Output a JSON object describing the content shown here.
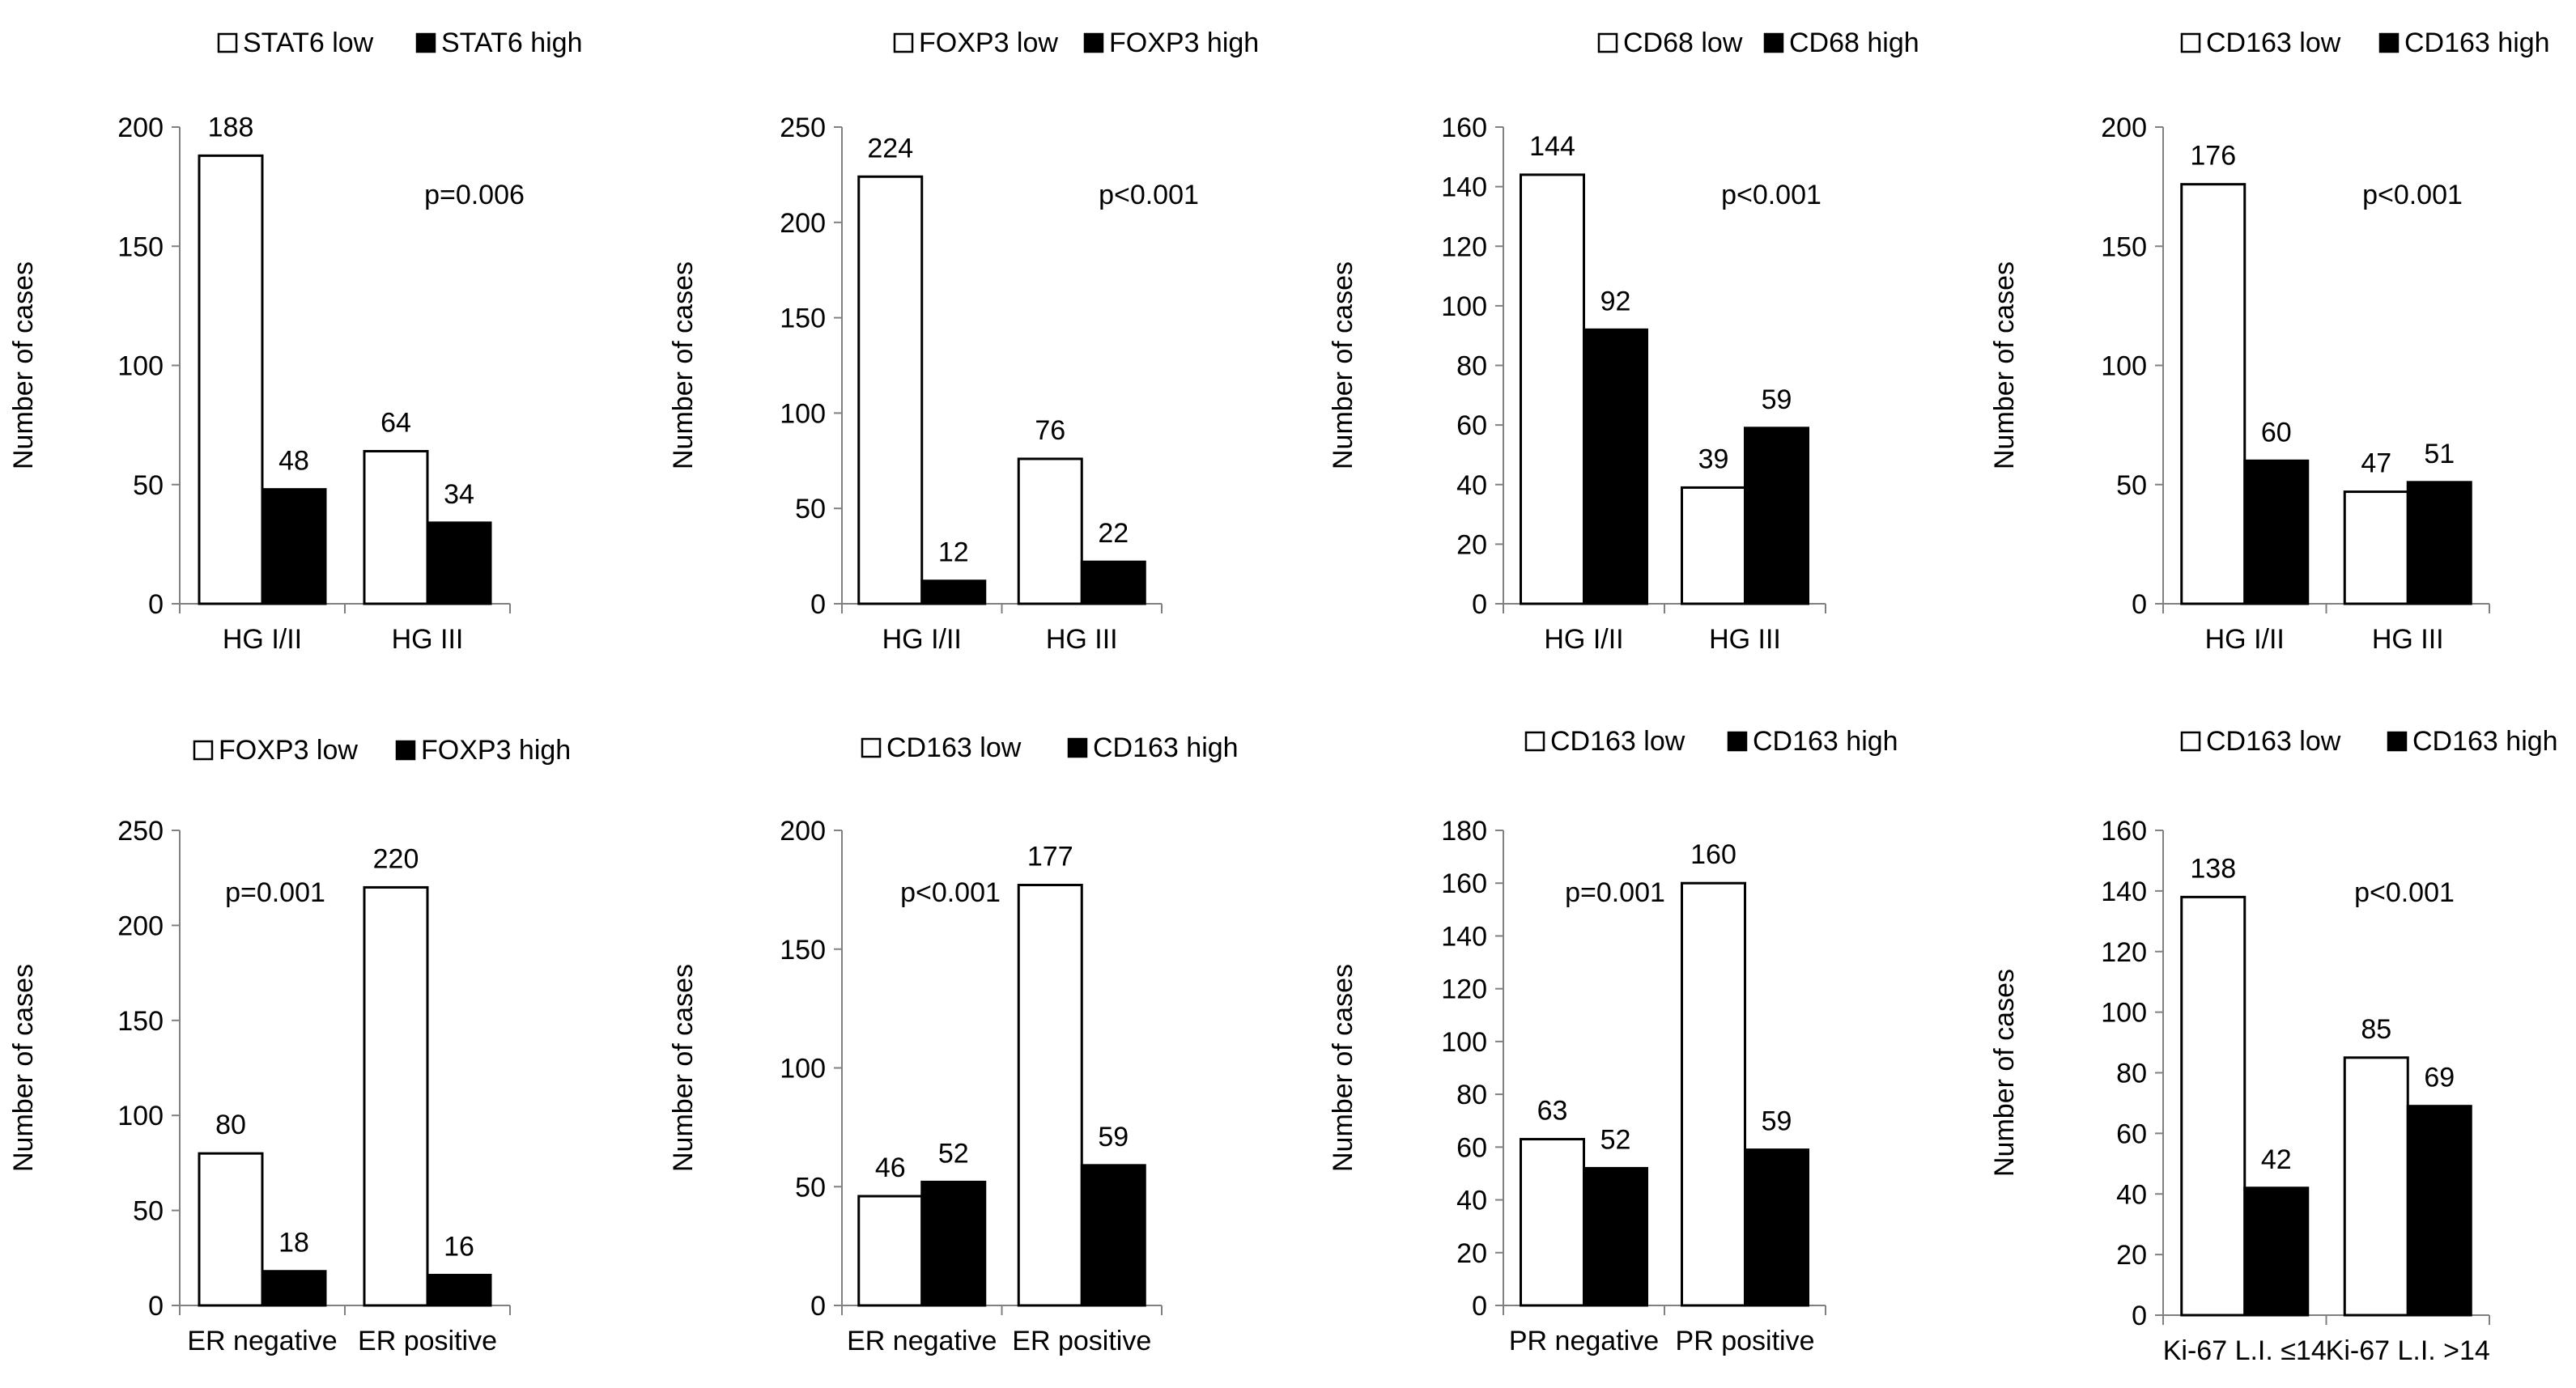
{
  "chart_data": [
    {
      "type": "bar",
      "title": "",
      "ylabel": "Number of cases",
      "xlabel": "",
      "ylim": [
        0,
        200
      ],
      "yticks": [
        0,
        50,
        100,
        150,
        200
      ],
      "categories": [
        "HG I/II",
        "HG III"
      ],
      "series": [
        {
          "name": "STAT6 low",
          "color": "#ffffff",
          "values": [
            188,
            64
          ]
        },
        {
          "name": "STAT6 high",
          "color": "#000000",
          "values": [
            48,
            34
          ]
        }
      ],
      "annotation": "p=0.006",
      "grid": false,
      "legend": "top"
    },
    {
      "type": "bar",
      "title": "",
      "ylabel": "Number of cases",
      "xlabel": "",
      "ylim": [
        0,
        250
      ],
      "yticks": [
        0,
        50,
        100,
        150,
        200,
        250
      ],
      "categories": [
        "HG I/II",
        "HG III"
      ],
      "series": [
        {
          "name": "FOXP3 low",
          "color": "#ffffff",
          "values": [
            224,
            76
          ]
        },
        {
          "name": "FOXP3 high",
          "color": "#000000",
          "values": [
            12,
            22
          ]
        }
      ],
      "annotation": "p<0.001",
      "grid": false,
      "legend": "top"
    },
    {
      "type": "bar",
      "title": "",
      "ylabel": "Number of cases",
      "xlabel": "",
      "ylim": [
        0,
        160
      ],
      "yticks": [
        0,
        20,
        40,
        60,
        80,
        100,
        120,
        140,
        160
      ],
      "categories": [
        "HG I/II",
        "HG III"
      ],
      "series": [
        {
          "name": "CD68 low",
          "color": "#ffffff",
          "values": [
            144,
            39
          ]
        },
        {
          "name": "CD68 high",
          "color": "#000000",
          "values": [
            92,
            59
          ]
        }
      ],
      "annotation": "p<0.001",
      "grid": false,
      "legend": "top"
    },
    {
      "type": "bar",
      "title": "",
      "ylabel": "Number of cases",
      "xlabel": "",
      "ylim": [
        0,
        200
      ],
      "yticks": [
        0,
        50,
        100,
        150,
        200
      ],
      "categories": [
        "HG I/II",
        "HG III"
      ],
      "series": [
        {
          "name": "CD163 low",
          "color": "#ffffff",
          "values": [
            176,
            47
          ]
        },
        {
          "name": "CD163 high",
          "color": "#000000",
          "values": [
            60,
            51
          ]
        }
      ],
      "annotation": "p<0.001",
      "grid": false,
      "legend": "top"
    },
    {
      "type": "bar",
      "title": "",
      "ylabel": "Number of cases",
      "xlabel": "",
      "ylim": [
        0,
        250
      ],
      "yticks": [
        0,
        50,
        100,
        150,
        200,
        250
      ],
      "categories": [
        "ER negative",
        "ER positive"
      ],
      "series": [
        {
          "name": "FOXP3 low",
          "color": "#ffffff",
          "values": [
            80,
            220
          ]
        },
        {
          "name": "FOXP3 high",
          "color": "#000000",
          "values": [
            18,
            16
          ]
        }
      ],
      "annotation": "p=0.001",
      "grid": false,
      "legend": "top"
    },
    {
      "type": "bar",
      "title": "",
      "ylabel": "Number of cases",
      "xlabel": "",
      "ylim": [
        0,
        200
      ],
      "yticks": [
        0,
        50,
        100,
        150,
        200
      ],
      "categories": [
        "ER negative",
        "ER positive"
      ],
      "series": [
        {
          "name": "CD163 low",
          "color": "#ffffff",
          "values": [
            46,
            177
          ]
        },
        {
          "name": "CD163 high",
          "color": "#000000",
          "values": [
            52,
            59
          ]
        }
      ],
      "annotation": "p<0.001",
      "grid": false,
      "legend": "top"
    },
    {
      "type": "bar",
      "title": "",
      "ylabel": "Number of cases",
      "xlabel": "",
      "ylim": [
        0,
        180
      ],
      "yticks": [
        0,
        20,
        40,
        60,
        80,
        100,
        120,
        140,
        160,
        180
      ],
      "categories": [
        "PR negative",
        "PR positive"
      ],
      "series": [
        {
          "name": "CD163 low",
          "color": "#ffffff",
          "values": [
            63,
            160
          ]
        },
        {
          "name": "CD163 high",
          "color": "#000000",
          "values": [
            52,
            59
          ]
        }
      ],
      "annotation": "p=0.001",
      "grid": false,
      "legend": "top"
    },
    {
      "type": "bar",
      "title": "",
      "ylabel": "Number of cases",
      "xlabel": "",
      "ylim": [
        0,
        160
      ],
      "yticks": [
        0,
        20,
        40,
        60,
        80,
        100,
        120,
        140,
        160
      ],
      "categories": [
        "Ki-67 L.I. ≤14",
        "Ki-67 L.I. >14"
      ],
      "series": [
        {
          "name": "CD163 low",
          "color": "#ffffff",
          "values": [
            138,
            85
          ]
        },
        {
          "name": "CD163 high",
          "color": "#000000",
          "values": [
            42,
            69
          ]
        }
      ],
      "annotation": "p<0.001",
      "grid": false,
      "legend": "top"
    }
  ]
}
